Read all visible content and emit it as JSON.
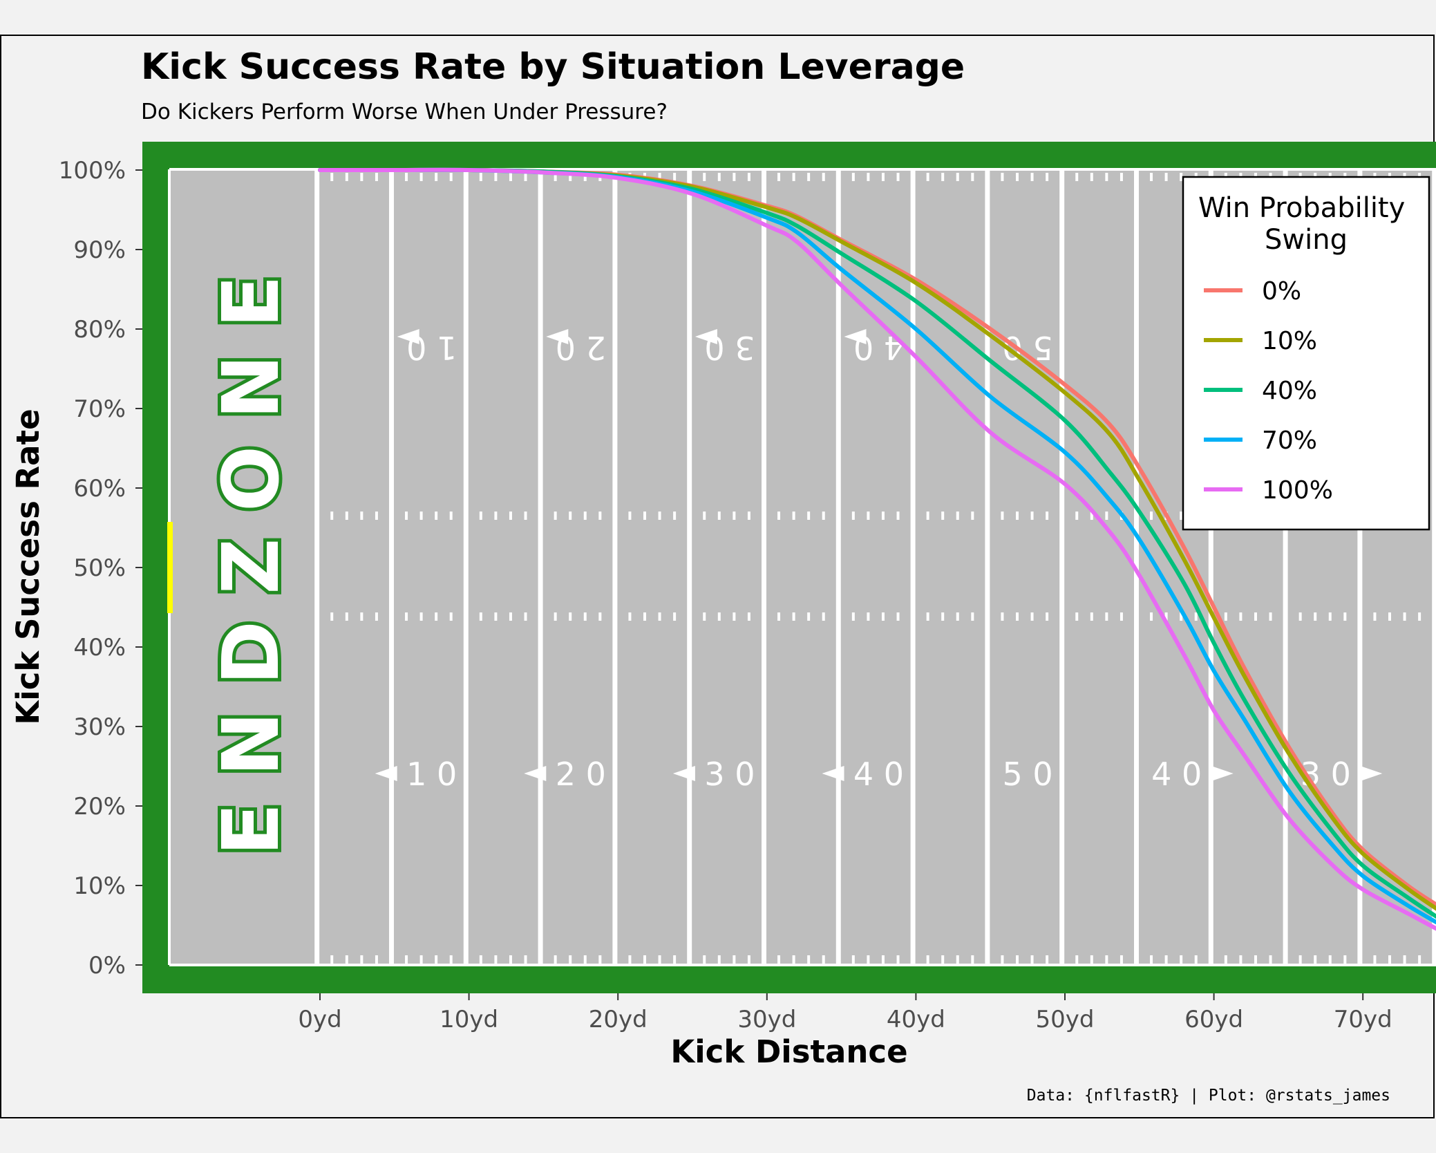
{
  "title": "Kick Success Rate by Situation Leverage",
  "subtitle": "Do Kickers Perform Worse When Under Pressure?",
  "caption": "Data: {nflfastR} | Plot: @rstats_james",
  "endzone_text": "ENDZONE",
  "field_numbers_top": [
    "10",
    "20",
    "30",
    "40",
    "50"
  ],
  "field_numbers_bottom": [
    "10",
    "20",
    "30",
    "40",
    "50",
    "40",
    "30"
  ],
  "colors": {
    "background": "#f2f2f2",
    "field_border": "#228b22",
    "turf": "#bebebe",
    "lines": "#ffffff",
    "goalpost": "#ffff00"
  },
  "chart_data": {
    "type": "line",
    "xlabel": "Kick Distance",
    "ylabel": "Kick Success Rate",
    "x_ticks": [
      "0yd",
      "10yd",
      "20yd",
      "30yd",
      "40yd",
      "50yd",
      "60yd",
      "70yd"
    ],
    "y_ticks": [
      "0%",
      "10%",
      "20%",
      "30%",
      "40%",
      "50%",
      "60%",
      "70%",
      "80%",
      "90%",
      "100%"
    ],
    "xlim": [
      -10,
      75
    ],
    "ylim": [
      0,
      1
    ],
    "legend": {
      "title": "Win Probability Swing",
      "position": "top-right"
    },
    "x": [
      0,
      5,
      10,
      15,
      20,
      25,
      30,
      32,
      35,
      40,
      45,
      50,
      53,
      55,
      58,
      60,
      62,
      65,
      68,
      70,
      73,
      75
    ],
    "series": [
      {
        "name": "0%",
        "color": "#f8766d",
        "values": [
          1.0,
          1.0,
          1.0,
          0.998,
          0.994,
          0.98,
          0.955,
          0.942,
          0.912,
          0.862,
          0.8,
          0.73,
          0.68,
          0.625,
          0.525,
          0.45,
          0.375,
          0.275,
          0.19,
          0.145,
          0.1,
          0.075
        ]
      },
      {
        "name": "10%",
        "color": "#a3a500",
        "values": [
          1.0,
          1.0,
          1.0,
          0.998,
          0.993,
          0.979,
          0.953,
          0.94,
          0.91,
          0.858,
          0.792,
          0.72,
          0.668,
          0.61,
          0.51,
          0.437,
          0.365,
          0.267,
          0.184,
          0.14,
          0.096,
          0.07
        ]
      },
      {
        "name": "40%",
        "color": "#00bf7d",
        "values": [
          1.0,
          1.0,
          1.0,
          0.998,
          0.992,
          0.976,
          0.946,
          0.93,
          0.895,
          0.835,
          0.76,
          0.685,
          0.62,
          0.57,
          0.48,
          0.405,
          0.335,
          0.243,
          0.167,
          0.125,
          0.085,
          0.06
        ]
      },
      {
        "name": "70%",
        "color": "#00b0f6",
        "values": [
          1.0,
          1.0,
          1.0,
          0.997,
          0.991,
          0.973,
          0.94,
          0.922,
          0.875,
          0.8,
          0.715,
          0.645,
          0.585,
          0.535,
          0.44,
          0.37,
          0.31,
          0.22,
          0.15,
          0.112,
          0.075,
          0.053
        ]
      },
      {
        "name": "100%",
        "color": "#e76bf3",
        "values": [
          1.0,
          1.0,
          1.0,
          0.997,
          0.99,
          0.97,
          0.93,
          0.91,
          0.855,
          0.765,
          0.67,
          0.605,
          0.545,
          0.49,
          0.39,
          0.32,
          0.265,
          0.185,
          0.125,
          0.095,
          0.065,
          0.045
        ]
      }
    ]
  }
}
